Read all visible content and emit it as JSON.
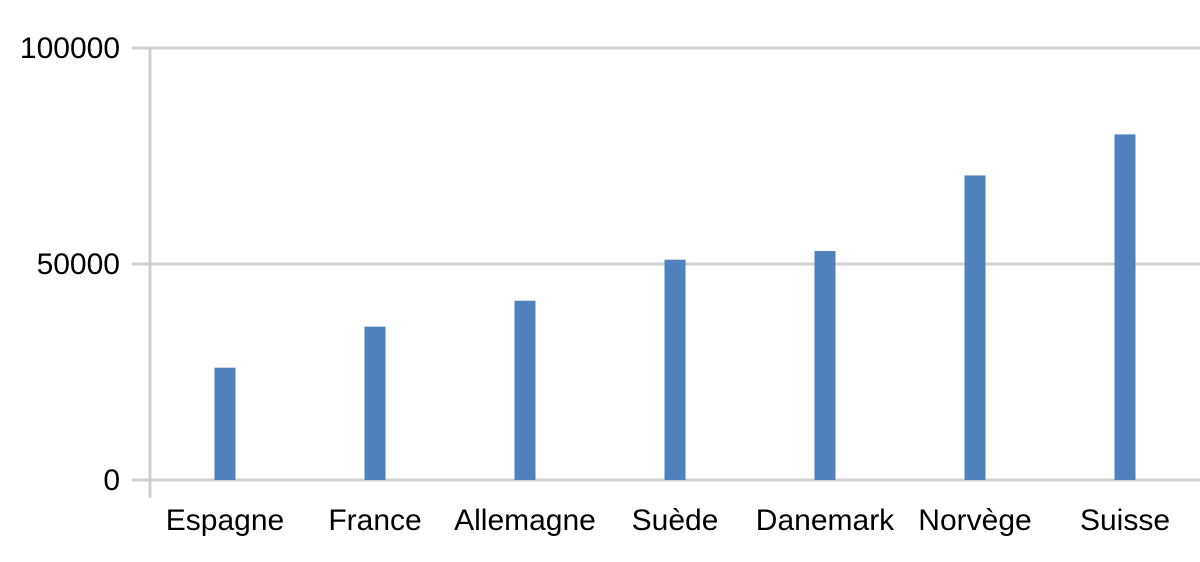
{
  "chart_data": {
    "type": "bar",
    "title": "",
    "xlabel": "",
    "ylabel": "",
    "categories": [
      "Espagne",
      "France",
      "Allemagne",
      "Suède",
      "Danemark",
      "Norvège",
      "Suisse"
    ],
    "values": [
      26000,
      35500,
      41500,
      51000,
      53000,
      70500,
      80000
    ],
    "ylim": [
      0,
      100000
    ],
    "yticks": [
      "0",
      "50000",
      "100000"
    ],
    "ytick_values": [
      0,
      50000,
      100000
    ],
    "grid": true,
    "legend": "none",
    "bar_color": "#4f81bd"
  }
}
